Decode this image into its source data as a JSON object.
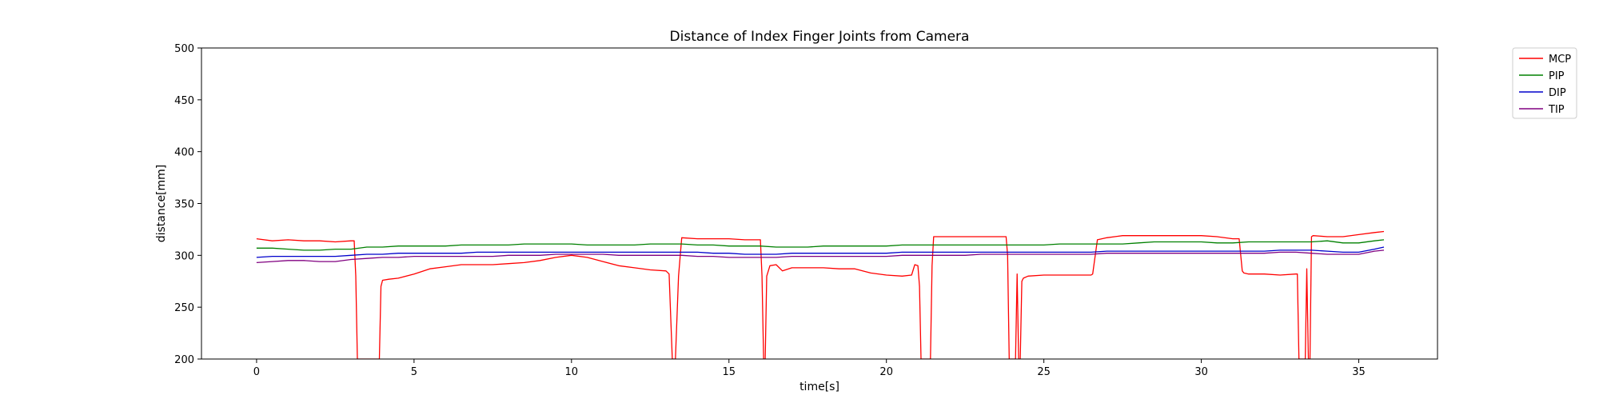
{
  "chart_data": {
    "type": "line",
    "title": "Distance of Index Finger Joints from Camera",
    "xlabel": "time[s]",
    "ylabel": "distance[mm]",
    "xlim": [
      -1.75,
      37.5
    ],
    "ylim": [
      200,
      500
    ],
    "xticks": [
      0,
      5,
      10,
      15,
      20,
      25,
      30,
      35
    ],
    "yticks": [
      200,
      250,
      300,
      350,
      400,
      450,
      500
    ],
    "grid": false,
    "legend_position": "outside-top-right",
    "series": [
      {
        "name": "MCP",
        "color": "#ff0000",
        "x": [
          0,
          0.5,
          1,
          1.5,
          2,
          2.5,
          3,
          3.1,
          3.15,
          3.2,
          3.9,
          3.95,
          4.0,
          4.2,
          4.5,
          5,
          5.5,
          6,
          6.5,
          7,
          7.5,
          8,
          8.5,
          9,
          9.5,
          10,
          10.5,
          11,
          11.5,
          12,
          12.5,
          13,
          13.1,
          13.2,
          13.3,
          13.4,
          13.5,
          14,
          14.5,
          15,
          15.5,
          16,
          16.05,
          16.1,
          16.15,
          16.2,
          16.3,
          16.5,
          16.7,
          17,
          17.5,
          18,
          18.5,
          19,
          19.5,
          20,
          20.5,
          20.8,
          20.9,
          21.0,
          21.05,
          21.1,
          21.4,
          21.45,
          21.5,
          22,
          22.5,
          23,
          23.5,
          23.8,
          23.85,
          23.9,
          24.1,
          24.15,
          24.2,
          24.25,
          24.3,
          24.35,
          24.5,
          25,
          25.5,
          26,
          26.5,
          26.55,
          26.7,
          27,
          27.5,
          28,
          28.5,
          29,
          29.5,
          30,
          30.5,
          31,
          31.2,
          31.3,
          31.35,
          31.5,
          32,
          32.5,
          33,
          33.05,
          33.1,
          33.3,
          33.35,
          33.4,
          33.45,
          33.5,
          33.55,
          34,
          34.5,
          35,
          35.5,
          35.8
        ],
        "y": [
          316,
          314,
          315,
          314,
          314,
          313,
          314,
          314,
          280,
          200,
          200,
          270,
          276,
          277,
          278,
          282,
          287,
          289,
          291,
          291,
          291,
          292,
          293,
          295,
          298,
          300,
          298,
          294,
          290,
          288,
          286,
          285,
          282,
          200,
          200,
          280,
          317,
          316,
          316,
          316,
          315,
          315,
          280,
          200,
          200,
          280,
          290,
          291,
          285,
          288,
          288,
          288,
          287,
          287,
          283,
          281,
          280,
          281,
          291,
          290,
          270,
          200,
          200,
          290,
          318,
          318,
          318,
          318,
          318,
          318,
          300,
          200,
          200,
          282,
          200,
          200,
          275,
          278,
          280,
          281,
          281,
          281,
          281,
          282,
          315,
          317,
          319,
          319,
          319,
          319,
          319,
          319,
          318,
          316,
          316,
          285,
          283,
          282,
          282,
          281,
          282,
          282,
          200,
          200,
          287,
          200,
          200,
          318,
          319,
          318,
          318,
          320,
          322,
          323
        ]
      },
      {
        "name": "PIP",
        "color": "#008000",
        "x": [
          0,
          0.5,
          1,
          1.5,
          2,
          2.5,
          3,
          3.5,
          4,
          4.5,
          5,
          5.5,
          6,
          6.5,
          7,
          7.5,
          8,
          8.5,
          9,
          9.5,
          10,
          10.5,
          11,
          11.5,
          12,
          12.5,
          13,
          13.5,
          14,
          14.5,
          15,
          15.5,
          16,
          16.5,
          17,
          17.5,
          18,
          18.5,
          19,
          19.5,
          20,
          20.5,
          21,
          21.5,
          22,
          22.5,
          23,
          23.5,
          24,
          24.5,
          25,
          25.5,
          26,
          26.5,
          27,
          27.5,
          28,
          28.5,
          29,
          29.5,
          30,
          30.5,
          31,
          31.5,
          32,
          32.5,
          33,
          33.5,
          34,
          34.5,
          35,
          35.5,
          35.8
        ],
        "y": [
          307,
          307,
          306,
          305,
          305,
          306,
          306,
          308,
          308,
          309,
          309,
          309,
          309,
          310,
          310,
          310,
          310,
          311,
          311,
          311,
          311,
          310,
          310,
          310,
          310,
          311,
          311,
          311,
          310,
          310,
          309,
          309,
          309,
          308,
          308,
          308,
          309,
          309,
          309,
          309,
          309,
          310,
          310,
          310,
          310,
          310,
          310,
          310,
          310,
          310,
          310,
          311,
          311,
          311,
          311,
          311,
          312,
          313,
          313,
          313,
          313,
          312,
          312,
          313,
          313,
          313,
          313,
          313,
          314,
          312,
          312,
          314,
          315
        ]
      },
      {
        "name": "DIP",
        "color": "#0000cc",
        "x": [
          0,
          0.5,
          1,
          1.5,
          2,
          2.5,
          3,
          3.5,
          4,
          4.5,
          5,
          5.5,
          6,
          6.5,
          7,
          7.5,
          8,
          8.5,
          9,
          9.5,
          10,
          10.5,
          11,
          11.5,
          12,
          12.5,
          13,
          13.5,
          14,
          14.5,
          15,
          15.5,
          16,
          16.5,
          17,
          17.5,
          18,
          18.5,
          19,
          19.5,
          20,
          20.5,
          21,
          21.5,
          22,
          22.5,
          23,
          23.5,
          24,
          24.5,
          25,
          25.5,
          26,
          26.5,
          27,
          27.5,
          28,
          28.5,
          29,
          29.5,
          30,
          30.5,
          31,
          31.5,
          32,
          32.5,
          33,
          33.5,
          34,
          34.5,
          35,
          35.5,
          35.8
        ],
        "y": [
          298,
          299,
          299,
          299,
          299,
          299,
          300,
          301,
          301,
          302,
          302,
          302,
          302,
          302,
          303,
          303,
          303,
          303,
          303,
          303,
          303,
          303,
          303,
          303,
          303,
          303,
          303,
          303,
          303,
          302,
          302,
          301,
          301,
          301,
          302,
          302,
          302,
          302,
          302,
          302,
          302,
          303,
          303,
          303,
          303,
          303,
          303,
          303,
          303,
          303,
          303,
          303,
          303,
          303,
          304,
          304,
          304,
          304,
          304,
          304,
          304,
          304,
          304,
          304,
          304,
          305,
          305,
          305,
          304,
          303,
          303,
          306,
          308
        ]
      },
      {
        "name": "TIP",
        "color": "#800080",
        "x": [
          0,
          0.5,
          1,
          1.5,
          2,
          2.5,
          3,
          3.5,
          4,
          4.5,
          5,
          5.5,
          6,
          6.5,
          7,
          7.5,
          8,
          8.5,
          9,
          9.5,
          10,
          10.5,
          11,
          11.5,
          12,
          12.5,
          13,
          13.5,
          14,
          14.5,
          15,
          15.5,
          16,
          16.5,
          17,
          17.5,
          18,
          18.5,
          19,
          19.5,
          20,
          20.5,
          21,
          21.5,
          22,
          22.5,
          23,
          23.5,
          24,
          24.5,
          25,
          25.5,
          26,
          26.5,
          27,
          27.5,
          28,
          28.5,
          29,
          29.5,
          30,
          30.5,
          31,
          31.5,
          32,
          32.5,
          33,
          33.5,
          34,
          34.5,
          35,
          35.5,
          35.8
        ],
        "y": [
          293,
          294,
          295,
          295,
          294,
          294,
          296,
          297,
          298,
          298,
          299,
          299,
          299,
          299,
          299,
          299,
          300,
          300,
          300,
          301,
          301,
          301,
          301,
          300,
          300,
          300,
          300,
          300,
          299,
          299,
          298,
          298,
          298,
          298,
          299,
          299,
          299,
          299,
          299,
          299,
          299,
          300,
          300,
          300,
          300,
          300,
          301,
          301,
          301,
          301,
          301,
          301,
          301,
          301,
          302,
          302,
          302,
          302,
          302,
          302,
          302,
          302,
          302,
          302,
          302,
          303,
          303,
          302,
          301,
          301,
          301,
          304,
          305
        ]
      }
    ]
  }
}
